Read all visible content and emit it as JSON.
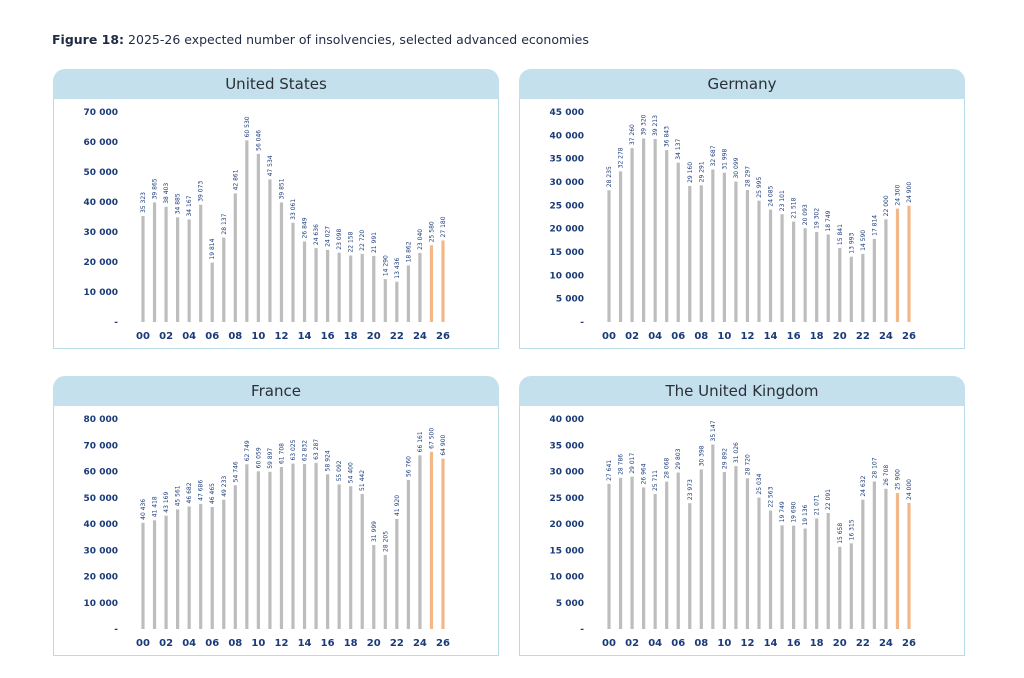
{
  "figure": {
    "label": "Figure 18:",
    "caption": "2025-26 expected number of insolvencies, selected advanced economies"
  },
  "colors": {
    "bar_actual": "#bdbdbd",
    "bar_forecast": "#f2b88a",
    "axis_text": "#1a3a78",
    "panel_header": "#c3e0ec",
    "panel_border": "#b9dbe8"
  },
  "chart_data": [
    {
      "type": "bar",
      "title": "United States",
      "categories": [
        "00",
        "01",
        "02",
        "03",
        "04",
        "05",
        "06",
        "07",
        "08",
        "09",
        "10",
        "11",
        "12",
        "13",
        "14",
        "15",
        "16",
        "17",
        "18",
        "19",
        "20",
        "21",
        "22",
        "23",
        "24",
        "25",
        "26"
      ],
      "x_tick_labels": [
        "00",
        "02",
        "04",
        "06",
        "08",
        "10",
        "12",
        "14",
        "16",
        "18",
        "20",
        "22",
        "24",
        "26"
      ],
      "values": [
        35323,
        39865,
        38403,
        34885,
        34167,
        39073,
        19814,
        28137,
        42861,
        60530,
        56046,
        47534,
        39851,
        33061,
        26849,
        24636,
        24027,
        23098,
        22158,
        22720,
        21991,
        14290,
        13436,
        18862,
        23040,
        25580,
        27180
      ],
      "value_labels": [
        "35 323",
        "39 865",
        "38 403",
        "34 885",
        "34 167",
        "39 073",
        "19 814",
        "28 137",
        "42 861",
        "60 530",
        "56 046",
        "47 534",
        "39 851",
        "33 061",
        "26 849",
        "24 636",
        "24 027",
        "23 098",
        "22 158",
        "22 720",
        "21 991",
        "14 290",
        "13 436",
        "18 862",
        "23 040",
        "25 580",
        "27 180"
      ],
      "forecast_categories": [
        "25",
        "26"
      ],
      "ylim": [
        0,
        70000
      ],
      "y_ticks": [
        0,
        10000,
        20000,
        30000,
        40000,
        50000,
        60000,
        70000
      ],
      "y_tick_labels": [
        "-",
        "10 000",
        "20 000",
        "30 000",
        "40 000",
        "50 000",
        "60 000",
        "70 000"
      ]
    },
    {
      "type": "bar",
      "title": "Germany",
      "categories": [
        "00",
        "01",
        "02",
        "03",
        "04",
        "05",
        "06",
        "07",
        "08",
        "09",
        "10",
        "11",
        "12",
        "13",
        "14",
        "15",
        "16",
        "17",
        "18",
        "19",
        "20",
        "21",
        "22",
        "23",
        "24",
        "25",
        "26"
      ],
      "x_tick_labels": [
        "00",
        "02",
        "04",
        "06",
        "08",
        "10",
        "12",
        "14",
        "16",
        "18",
        "20",
        "22",
        "24",
        "26"
      ],
      "values": [
        28235,
        32278,
        37260,
        39320,
        39213,
        36843,
        34137,
        29160,
        29291,
        32687,
        31998,
        30099,
        28297,
        25995,
        24085,
        23101,
        21518,
        20093,
        19302,
        18749,
        15841,
        13993,
        14590,
        17814,
        22000,
        24300,
        24900
      ],
      "value_labels": [
        "28 235",
        "32 278",
        "37 260",
        "39 320",
        "39 213",
        "36 843",
        "34 137",
        "29 160",
        "29 291",
        "32 687",
        "31 998",
        "30 099",
        "28 297",
        "25 995",
        "24 085",
        "23 101",
        "21 518",
        "20 093",
        "19 302",
        "18 749",
        "15 841",
        "13 993",
        "14 590",
        "17 814",
        "22 000",
        "24 300",
        "24 900"
      ],
      "forecast_categories": [
        "25",
        "26"
      ],
      "ylim": [
        0,
        45000
      ],
      "y_ticks": [
        0,
        5000,
        10000,
        15000,
        20000,
        25000,
        30000,
        35000,
        40000,
        45000
      ],
      "y_tick_labels": [
        "-",
        "5 000",
        "10 000",
        "15 000",
        "20 000",
        "25 000",
        "30 000",
        "35 000",
        "40 000",
        "45 000"
      ]
    },
    {
      "type": "bar",
      "title": "France",
      "categories": [
        "00",
        "01",
        "02",
        "03",
        "04",
        "05",
        "06",
        "07",
        "08",
        "09",
        "10",
        "11",
        "12",
        "13",
        "14",
        "15",
        "16",
        "17",
        "18",
        "19",
        "20",
        "21",
        "22",
        "23",
        "24",
        "25",
        "26"
      ],
      "x_tick_labels": [
        "00",
        "02",
        "04",
        "06",
        "08",
        "10",
        "12",
        "14",
        "16",
        "18",
        "20",
        "22",
        "24",
        "26"
      ],
      "values": [
        40436,
        41418,
        43169,
        45561,
        46682,
        47686,
        46465,
        49233,
        54746,
        62749,
        60059,
        59897,
        61708,
        63025,
        62832,
        63287,
        58924,
        55092,
        54400,
        51442,
        31999,
        28205,
        41920,
        56760,
        66161,
        67500,
        64900
      ],
      "value_labels": [
        "40 436",
        "41 418",
        "43 169",
        "45 561",
        "46 682",
        "47 686",
        "46 465",
        "49 233",
        "54 746",
        "62 749",
        "60 059",
        "59 897",
        "61 708",
        "63 025",
        "62 832",
        "63 287",
        "58 924",
        "55 092",
        "54 400",
        "51 442",
        "31 999",
        "28 205",
        "41 920",
        "56 760",
        "66 161",
        "67 500",
        "64 900"
      ],
      "forecast_categories": [
        "25",
        "26"
      ],
      "ylim": [
        0,
        80000
      ],
      "y_ticks": [
        0,
        10000,
        20000,
        30000,
        40000,
        50000,
        60000,
        70000,
        80000
      ],
      "y_tick_labels": [
        "-",
        "10 000",
        "20 000",
        "30 000",
        "40 000",
        "50 000",
        "60 000",
        "70 000",
        "80 000"
      ]
    },
    {
      "type": "bar",
      "title": "The United Kingdom",
      "categories": [
        "00",
        "01",
        "02",
        "03",
        "04",
        "05",
        "06",
        "07",
        "08",
        "09",
        "10",
        "11",
        "12",
        "13",
        "14",
        "15",
        "16",
        "17",
        "18",
        "19",
        "20",
        "21",
        "22",
        "23",
        "24",
        "25",
        "26"
      ],
      "x_tick_labels": [
        "00",
        "02",
        "04",
        "06",
        "08",
        "10",
        "12",
        "14",
        "16",
        "18",
        "20",
        "22",
        "24",
        "26"
      ],
      "values": [
        27641,
        28786,
        29017,
        26964,
        25711,
        28068,
        29803,
        23973,
        30398,
        35147,
        29892,
        31026,
        28720,
        25034,
        22563,
        19749,
        19690,
        19136,
        21071,
        22091,
        15658,
        16315,
        24632,
        28107,
        26708,
        25900,
        24000
      ],
      "value_labels": [
        "27 641",
        "28 786",
        "29 017",
        "26 964",
        "25 711",
        "28 068",
        "29 803",
        "23 973",
        "30 398",
        "35 147",
        "29 892",
        "31 026",
        "28 720",
        "25 034",
        "22 563",
        "19 749",
        "19 690",
        "19 136",
        "21 071",
        "22 091",
        "15 658",
        "16 315",
        "24 632",
        "28 107",
        "26 708",
        "25 900",
        "24 000"
      ],
      "forecast_categories": [
        "25",
        "26"
      ],
      "ylim": [
        0,
        40000
      ],
      "y_ticks": [
        0,
        5000,
        10000,
        15000,
        20000,
        25000,
        30000,
        35000,
        40000
      ],
      "y_tick_labels": [
        "-",
        "5 000",
        "10 000",
        "15 000",
        "20 000",
        "25 000",
        "30 000",
        "35 000",
        "40 000"
      ]
    }
  ]
}
